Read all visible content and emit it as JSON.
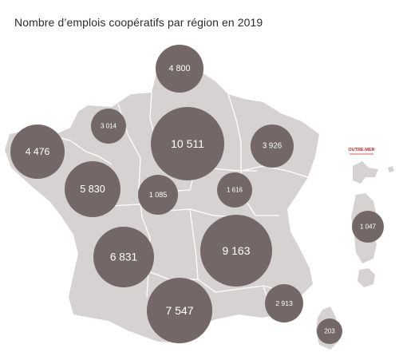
{
  "title": "Nombre d’emplois coopératifs par région en 2019",
  "outre_mer_label": "OUTRE-MER",
  "colors": {
    "land": "#d7d2d2",
    "border": "#ffffff",
    "bubble": "#736767",
    "bubble_text": "#ffffff",
    "outre_mer_text": "#c62828"
  },
  "regions": [
    {
      "id": "hauts-de-france",
      "label": "4 800",
      "value": 4800
    },
    {
      "id": "normandie",
      "label": "3 014",
      "value": 3014
    },
    {
      "id": "bretagne",
      "label": "4 476",
      "value": 4476
    },
    {
      "id": "ile-de-france",
      "label": "10 511",
      "value": 10511
    },
    {
      "id": "grand-est",
      "label": "3 926",
      "value": 3926
    },
    {
      "id": "pays-de-la-loire",
      "label": "5 830",
      "value": 5830
    },
    {
      "id": "centre-val-de-loire",
      "label": "1 085",
      "value": 1085
    },
    {
      "id": "bourgogne-franche-comte",
      "label": "1 616",
      "value": 1616
    },
    {
      "id": "nouvelle-aquitaine",
      "label": "6 831",
      "value": 6831
    },
    {
      "id": "auvergne-rhone-alpes",
      "label": "9 163",
      "value": 9163
    },
    {
      "id": "occitanie",
      "label": "7 547",
      "value": 7547
    },
    {
      "id": "provence-alpes-cote-d-azur",
      "label": "2 913",
      "value": 2913
    },
    {
      "id": "corse",
      "label": "203",
      "value": 203
    },
    {
      "id": "outre-mer",
      "label": "1 047",
      "value": 1047
    }
  ]
}
